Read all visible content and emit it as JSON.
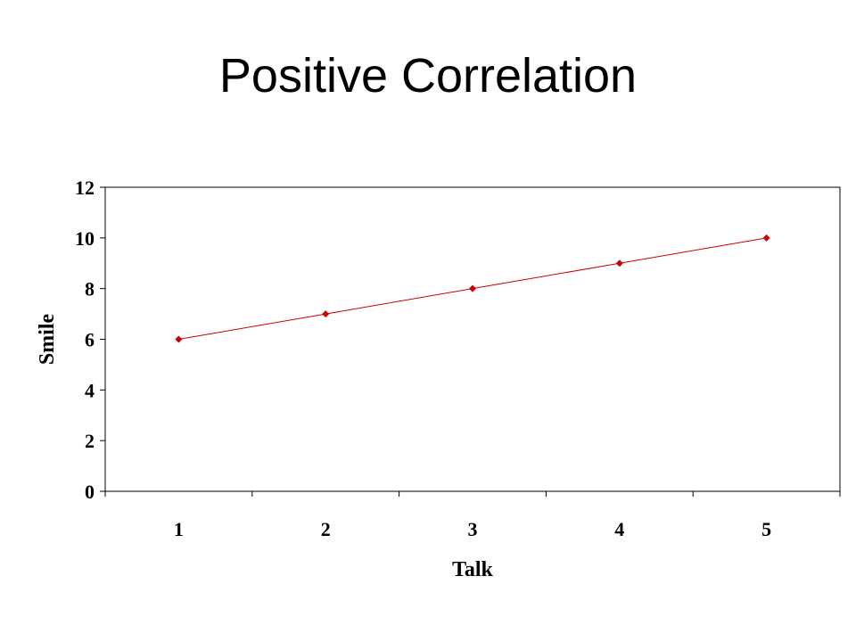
{
  "slide": {
    "title": "Positive Correlation"
  },
  "chart_data": {
    "type": "line",
    "title": "",
    "xlabel": "Talk",
    "ylabel": "Smile",
    "categories": [
      "1",
      "2",
      "3",
      "4",
      "5"
    ],
    "series": [
      {
        "values": [
          6,
          7,
          8,
          9,
          10
        ],
        "color": "#cc0000",
        "marker": "diamond"
      }
    ],
    "ylim": [
      0,
      12
    ],
    "yticks": [
      0,
      2,
      4,
      6,
      8,
      10,
      12
    ],
    "grid": false,
    "legend": "none"
  }
}
